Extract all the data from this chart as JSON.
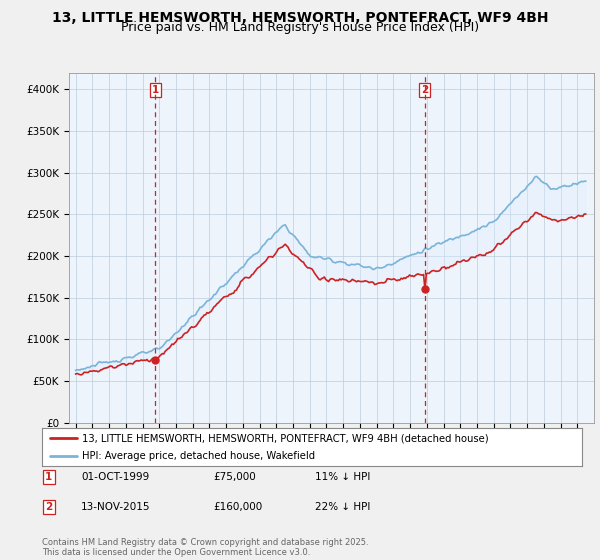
{
  "title1": "13, LITTLE HEMSWORTH, HEMSWORTH, PONTEFRACT, WF9 4BH",
  "title2": "Price paid vs. HM Land Registry's House Price Index (HPI)",
  "ylim": [
    0,
    420000
  ],
  "yticks": [
    0,
    50000,
    100000,
    150000,
    200000,
    250000,
    300000,
    350000,
    400000
  ],
  "ytick_labels": [
    "£0",
    "£50K",
    "£100K",
    "£150K",
    "£200K",
    "£250K",
    "£300K",
    "£350K",
    "£400K"
  ],
  "hpi_color": "#7ab4d8",
  "price_color": "#cc2222",
  "vline_color": "#cc2222",
  "fill_color": "#ddeeff",
  "bg_color": "#f0f0f0",
  "plot_bg": "#eef4fb",
  "sale1_year": 1999.75,
  "sale1_price": 75000,
  "sale2_year": 2015.87,
  "sale2_price": 160000,
  "legend_line1": "13, LITTLE HEMSWORTH, HEMSWORTH, PONTEFRACT, WF9 4BH (detached house)",
  "legend_line2": "HPI: Average price, detached house, Wakefield",
  "footnote": "Contains HM Land Registry data © Crown copyright and database right 2025.\nThis data is licensed under the Open Government Licence v3.0.",
  "title_fontsize": 10,
  "subtitle_fontsize": 9
}
